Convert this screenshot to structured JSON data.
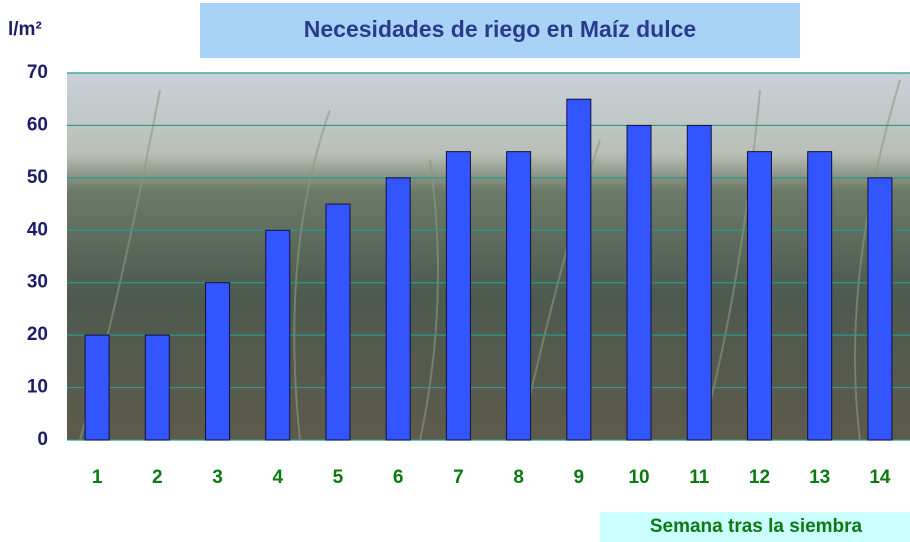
{
  "chart_data": {
    "type": "bar",
    "title": "Necesidades de riego en Maíz dulce",
    "y_label": "l/m²",
    "x_label": "Semana tras la siembra",
    "categories": [
      "1",
      "2",
      "3",
      "4",
      "5",
      "6",
      "7",
      "8",
      "9",
      "10",
      "11",
      "12",
      "13",
      "14"
    ],
    "values": [
      20,
      20,
      30,
      40,
      45,
      50,
      55,
      55,
      65,
      60,
      60,
      55,
      55,
      50
    ],
    "color": "#3355ff",
    "ylim": [
      0,
      70
    ],
    "yticks": [
      0,
      10,
      20,
      30,
      40,
      50,
      60,
      70
    ],
    "grid": true
  }
}
